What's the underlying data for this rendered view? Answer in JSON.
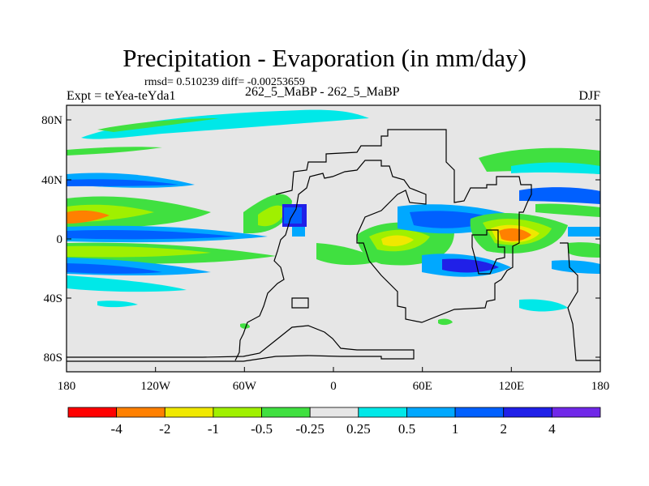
{
  "title": "Precipitation - Evaporation (in mm/day)",
  "stats": {
    "rmsd_label": "rmsd=",
    "rmsd_value": "0.510239",
    "diff_label": "diff=",
    "diff_value": "-0.00253659",
    "text": "rmsd= 0.510239 diff= -0.00253659"
  },
  "experiment": "Expt = teYea-teYda1",
  "case": "262_5_MaBP - 262_5_MaBP",
  "season": "DJF",
  "axes": {
    "x_ticks": [
      "180",
      "120W",
      "60W",
      "0",
      "60E",
      "120E",
      "180"
    ],
    "y_ticks": [
      "80N",
      "40N",
      "0",
      "40S",
      "80S"
    ]
  },
  "colorbar": {
    "colors": [
      "#ff0000",
      "#ff8000",
      "#f0e800",
      "#a0f000",
      "#40e040",
      "#e6e6e6",
      "#00e8e8",
      "#00a8ff",
      "#0060ff",
      "#2020e8",
      "#7028e8"
    ],
    "labels": [
      "-4",
      "-2",
      "-1",
      "-0.5",
      "-0.25",
      "0.25",
      "0.5",
      "1",
      "2",
      "4"
    ]
  },
  "palette": {
    "background": "#e6e6e6",
    "coast": "#000000"
  }
}
